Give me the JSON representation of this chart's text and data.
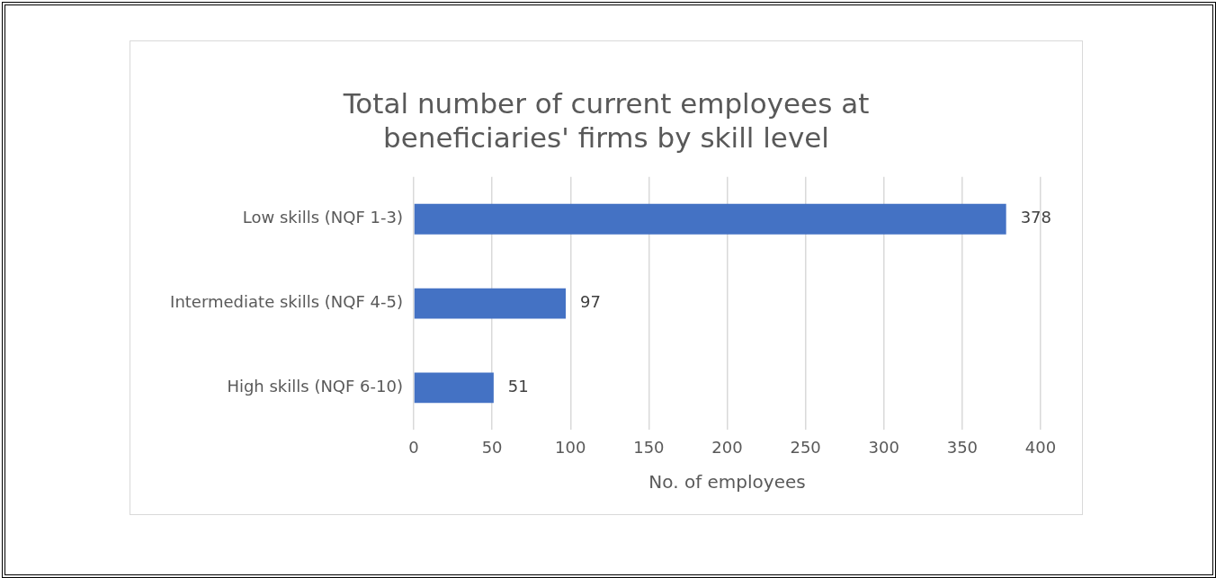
{
  "chart_data": {
    "type": "bar",
    "orientation": "horizontal",
    "title": "Total number of current employees at beneficiaries' firms by skill level",
    "categories": [
      "Low skills (NQF 1-3)",
      "Intermediate skills (NQF 4-5)",
      "High skills (NQF 6-10)"
    ],
    "values": [
      378,
      97,
      51
    ],
    "color": "#4472c4",
    "xlim": [
      0,
      400
    ],
    "xticks": [
      0,
      50,
      100,
      150,
      200,
      250,
      300,
      350,
      400
    ],
    "xlabel": "No. of employees",
    "grid": "x",
    "data_labels": true,
    "legend": false
  }
}
